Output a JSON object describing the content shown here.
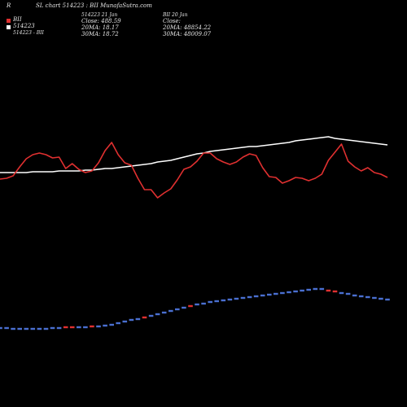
{
  "header": {
    "left_letter": "R",
    "title": "SL chart 514223 : BII MunafaSutra.com"
  },
  "legend": {
    "ticker_line1": "BII",
    "ticker_line2": "514223",
    "sub_label": "514223 - BII"
  },
  "info_block_1": {
    "line1": "514223 21 Jan",
    "line2": "Close: 488.59",
    "line3": "20MA: 18.17",
    "line4": "30MA: 18.72"
  },
  "info_block_2": {
    "line1": "BII 20 Jan",
    "line2": "Close:",
    "line3": "20MA: 48854.22",
    "line4": "30MA: 48009.07"
  },
  "colors": {
    "background": "#000000",
    "price_line": "#e03030",
    "ma_line": "#ffffff",
    "volume_up": "#4a6fd0",
    "volume_down": "#e03030",
    "text": "#e6e6e6"
  },
  "chart_data": {
    "type": "line",
    "x": [
      1,
      2,
      3,
      4,
      5,
      6,
      7,
      8,
      9,
      10,
      11,
      12,
      13,
      14,
      15,
      16,
      17,
      18,
      19,
      20,
      21,
      22,
      23,
      24,
      25,
      26,
      27,
      28,
      29,
      30,
      31,
      32,
      33,
      34,
      35,
      36,
      37,
      38,
      39,
      40,
      41,
      42,
      43,
      44,
      45,
      46,
      47,
      48,
      49,
      50,
      51,
      52,
      53,
      54,
      55,
      56,
      57,
      58,
      59,
      60
    ],
    "series": [
      {
        "role": "price",
        "values": [
          220,
          219,
          216,
          205,
          195,
          190,
          188,
          190,
          194,
          193,
          207,
          201,
          208,
          212,
          210,
          200,
          185,
          175,
          190,
          200,
          203,
          219,
          233,
          233,
          243,
          237,
          232,
          221,
          208,
          205,
          198,
          188,
          188,
          195,
          199,
          202,
          199,
          193,
          189,
          191,
          206,
          217,
          218,
          225,
          222,
          218,
          219,
          222,
          219,
          214,
          197,
          187,
          177,
          198,
          205,
          210,
          206,
          212,
          214,
          218
        ]
      },
      {
        "role": "moving-average",
        "values": [
          212,
          212,
          212,
          212,
          212,
          211,
          211,
          211,
          211,
          210,
          210,
          210,
          210,
          209,
          209,
          208,
          207,
          207,
          206,
          205,
          204,
          203,
          202,
          201,
          199,
          198,
          197,
          195,
          193,
          191,
          189,
          188,
          186,
          185,
          184,
          183,
          182,
          181,
          180,
          180,
          179,
          178,
          177,
          176,
          175,
          173,
          172,
          171,
          170,
          169,
          168,
          170,
          171,
          172,
          173,
          174,
          175,
          176,
          177,
          178
        ]
      }
    ],
    "volume": [
      403,
      403,
      404,
      404,
      404,
      404,
      404,
      404,
      403,
      403,
      402,
      402,
      402,
      402,
      401,
      401,
      400,
      399,
      397,
      395,
      393,
      392,
      390,
      388,
      386,
      384,
      382,
      380,
      378,
      376,
      374,
      373,
      371,
      370,
      369,
      368,
      367,
      366,
      365,
      364,
      363,
      362,
      361,
      360,
      359,
      358,
      357,
      356,
      355,
      355,
      357,
      358,
      360,
      361,
      363,
      364,
      365,
      366,
      367,
      368
    ],
    "volume_up": [
      true,
      true,
      true,
      true,
      true,
      true,
      true,
      true,
      true,
      true,
      false,
      false,
      true,
      true,
      false,
      true,
      true,
      true,
      true,
      true,
      true,
      true,
      false,
      true,
      true,
      true,
      true,
      true,
      true,
      false,
      true,
      true,
      true,
      true,
      true,
      true,
      true,
      true,
      true,
      true,
      true,
      true,
      true,
      true,
      true,
      true,
      true,
      true,
      true,
      true,
      false,
      false,
      true,
      true,
      true,
      true,
      true,
      true,
      true,
      true
    ],
    "ylim": [
      0,
      500
    ],
    "grid": false
  }
}
